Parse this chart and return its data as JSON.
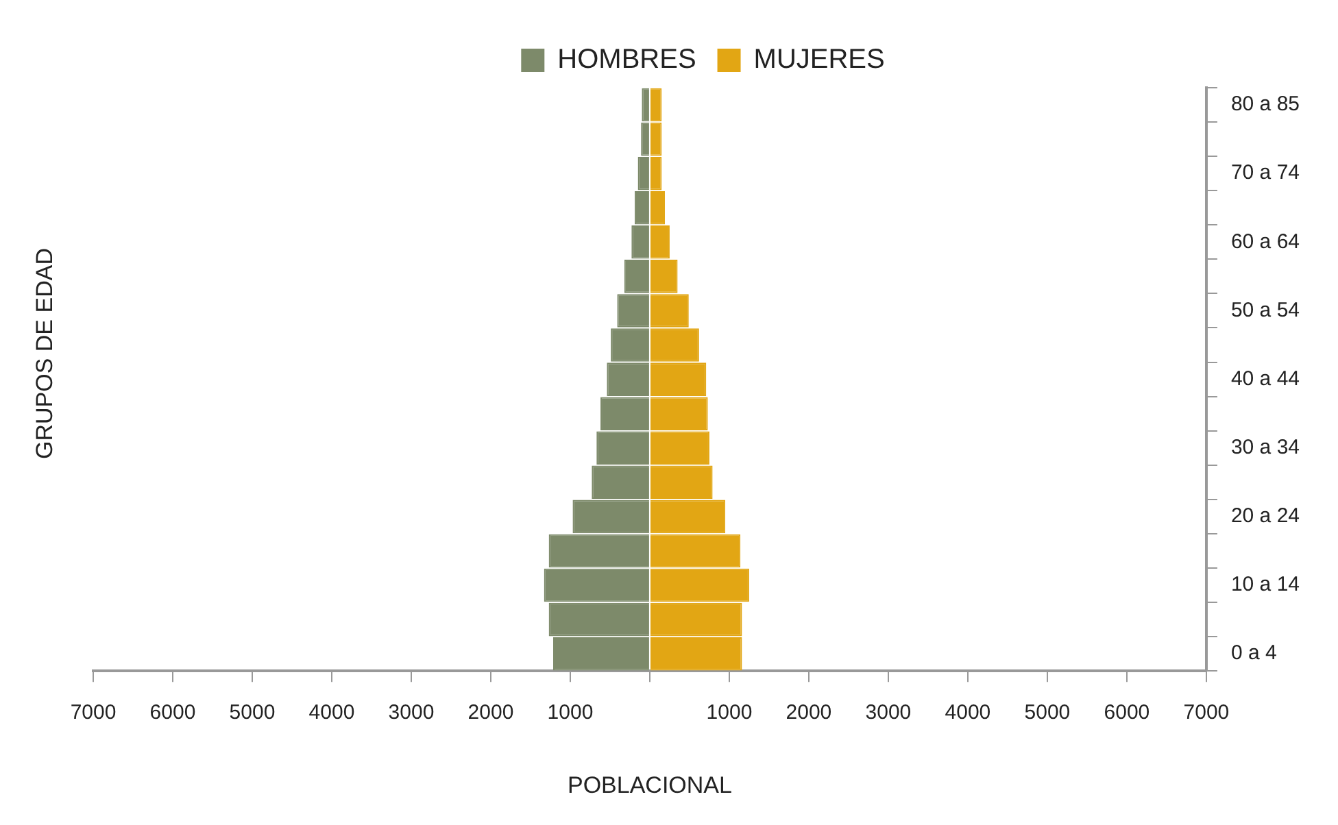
{
  "chart_data": {
    "type": "bar",
    "orientation": "horizontal",
    "stacked": true,
    "xlabel": "POBLACIONAL",
    "ylabel": "GRUPOS DE EDAD",
    "legend": "top",
    "categories": [
      "80 a 85",
      null,
      "70 a 74",
      null,
      "60 a 64",
      null,
      "50 a 54",
      null,
      "40 a 44",
      null,
      "30 a 34",
      null,
      "20 a 24",
      null,
      "10 a 14",
      null,
      "0 a 4"
    ],
    "series": [
      {
        "name": "HOMBRES",
        "color": "#7d8a6a",
        "values": [
          -100,
          -110,
          -150,
          -190,
          -230,
          -320,
          -410,
          -490,
          -540,
          -620,
          -670,
          -730,
          -970,
          -1270,
          -1330,
          -1270,
          -1215
        ]
      },
      {
        "name": "MUJERES",
        "color": "#e2a614",
        "values": [
          150,
          150,
          150,
          190,
          250,
          350,
          490,
          620,
          710,
          730,
          750,
          790,
          950,
          1140,
          1250,
          1160,
          1160
        ]
      }
    ],
    "xlim": [
      -7000,
      7000
    ],
    "xticks": [
      {
        "value": -7000,
        "label": "7000"
      },
      {
        "value": -6000,
        "label": "6000"
      },
      {
        "value": -5000,
        "label": "5000"
      },
      {
        "value": -4000,
        "label": "4000"
      },
      {
        "value": -3000,
        "label": "3000"
      },
      {
        "value": -2000,
        "label": "2000"
      },
      {
        "value": -1000,
        "label": "1000"
      },
      {
        "value": 0,
        "label": null
      },
      {
        "value": 1000,
        "label": "1000"
      },
      {
        "value": 2000,
        "label": "2000"
      },
      {
        "value": 3000,
        "label": "3000"
      },
      {
        "value": 4000,
        "label": "4000"
      },
      {
        "value": 5000,
        "label": "5000"
      },
      {
        "value": 6000,
        "label": "6000"
      },
      {
        "value": 7000,
        "label": "7000"
      }
    ],
    "grid": false
  }
}
